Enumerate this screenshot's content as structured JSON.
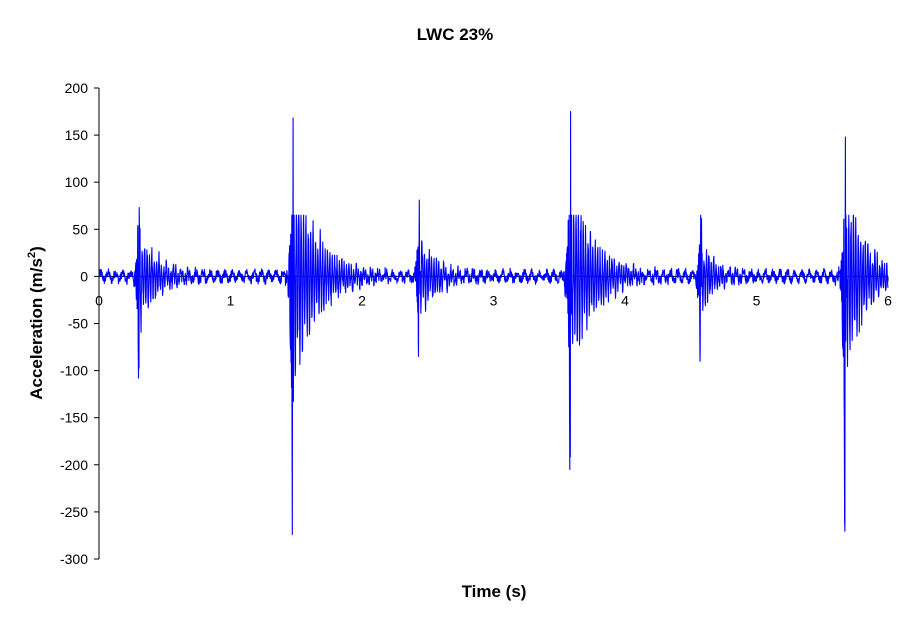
{
  "chart_data": {
    "type": "line",
    "title": "LWC 23%",
    "xlabel": "Time (s)",
    "ylabel_main": "Acceleration (m/s",
    "ylabel_sup": "2",
    "ylabel_close": ")",
    "xlim": [
      0,
      6
    ],
    "ylim": [
      -300,
      200
    ],
    "x_ticks": [
      0,
      1,
      2,
      3,
      4,
      5,
      6
    ],
    "y_ticks": [
      200,
      150,
      100,
      50,
      0,
      -50,
      -100,
      -150,
      -200,
      -250,
      -300
    ],
    "series_color": "#0000ff",
    "grid": false,
    "legend": "none",
    "series": [
      {
        "sample_interval_s": 0.002,
        "bursts": [
          {
            "t": 0.3,
            "min": -108,
            "max": 73,
            "decay": 0.45
          },
          {
            "t": 1.47,
            "min": -274,
            "max": 168,
            "decay": 0.55
          },
          {
            "t": 2.43,
            "min": -85,
            "max": 81,
            "decay": 0.4
          },
          {
            "t": 3.58,
            "min": -205,
            "max": 175,
            "decay": 0.55
          },
          {
            "t": 4.57,
            "min": -90,
            "max": 65,
            "decay": 0.35
          },
          {
            "t": 5.67,
            "min": -258,
            "max": 148,
            "decay": 0.45
          }
        ]
      }
    ]
  }
}
